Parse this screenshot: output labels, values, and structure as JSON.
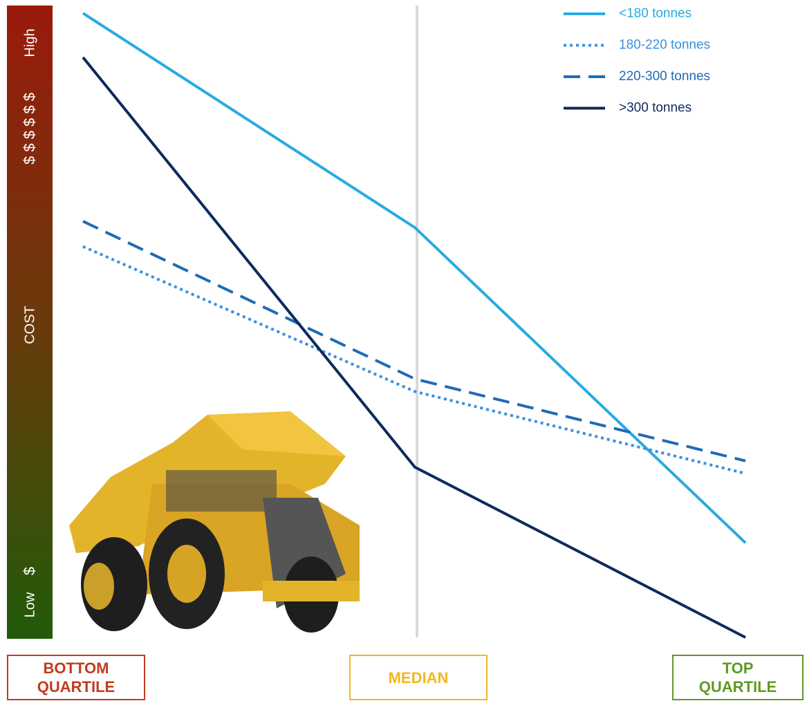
{
  "chart_data": {
    "type": "line",
    "categories": [
      "BOTTOM QUARTILE",
      "MEDIAN",
      "TOP QUARTILE"
    ],
    "category_colors": [
      "#c23b1e",
      "#f2b71f",
      "#5e9a22"
    ],
    "y_label": "COST",
    "y_high": "High",
    "y_high_symbols": "$ $ $ $ $ $",
    "y_low": "Low",
    "y_low_symbol": "$",
    "ylim": [
      0,
      100
    ],
    "series": [
      {
        "name": "<180 tonnes",
        "color": "#29aae1",
        "dash": "solid",
        "values": [
          99,
          65,
          15
        ]
      },
      {
        "name": "180-220 tonnes",
        "color": "#3b8fe0",
        "dash": "dotted",
        "values": [
          62,
          39,
          26
        ]
      },
      {
        "name": "220-300 tonnes",
        "color": "#1f6bb5",
        "dash": "dashed",
        "values": [
          66,
          41,
          28
        ]
      },
      {
        "name": ">300 tonnes",
        "color": "#0d2a5c",
        "dash": "solid",
        "values": [
          92,
          27,
          0
        ]
      }
    ]
  }
}
